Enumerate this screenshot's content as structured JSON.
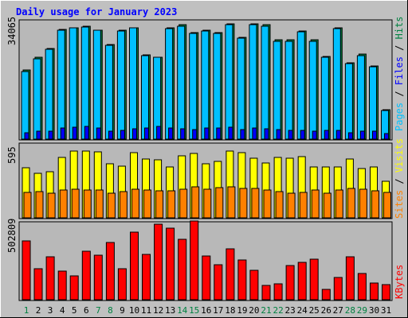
{
  "chart_data": [
    {
      "type": "bar",
      "title": "Daily usage for January 2023",
      "categories": [
        "1",
        "2",
        "3",
        "4",
        "5",
        "6",
        "7",
        "8",
        "9",
        "10",
        "11",
        "12",
        "13",
        "14",
        "15",
        "16",
        "17",
        "18",
        "19",
        "20",
        "21",
        "22",
        "23",
        "24",
        "25",
        "26",
        "27",
        "28",
        "29",
        "30",
        "31"
      ],
      "weekend_days": [
        "1",
        "7",
        "8",
        "14",
        "15",
        "21",
        "22",
        "28",
        "29"
      ],
      "max_label": "34065",
      "ylim": [
        0,
        34065
      ],
      "legend": [
        "Pages",
        "Files",
        "Hits"
      ],
      "series": [
        {
          "name": "Hits",
          "color": "#008040",
          "values": [
            19700,
            23400,
            25900,
            31400,
            31900,
            32300,
            31200,
            27000,
            31200,
            31900,
            24100,
            23500,
            31800,
            32600,
            30500,
            31000,
            30500,
            33000,
            29000,
            32900,
            32600,
            28300,
            28300,
            30900,
            28300,
            23700,
            31800,
            21800,
            24200,
            20800,
            8400
          ]
        },
        {
          "name": "Files",
          "color": "#00c0ff",
          "values": [
            19400,
            23000,
            25600,
            31200,
            31700,
            32000,
            31000,
            26800,
            30900,
            31700,
            23900,
            23300,
            31600,
            32300,
            30300,
            30800,
            30300,
            32800,
            28800,
            32700,
            32300,
            28000,
            28000,
            30600,
            28000,
            23400,
            31600,
            21600,
            23900,
            20600,
            8200
          ]
        },
        {
          "name": "Pages",
          "color": "#0000ff",
          "values": [
            1900,
            2300,
            2300,
            3200,
            3400,
            3600,
            3100,
            2200,
            2500,
            2900,
            3100,
            3600,
            3100,
            2900,
            2800,
            3100,
            3100,
            3400,
            2800,
            3100,
            2900,
            2700,
            2400,
            2500,
            2200,
            2400,
            2500,
            1900,
            2200,
            2200,
            1500
          ]
        }
      ]
    },
    {
      "type": "bar",
      "max_label": "595",
      "ylim": [
        0,
        595
      ],
      "legend": [
        "Sites",
        "Visits"
      ],
      "series": [
        {
          "name": "Visits",
          "color": "#ffff00",
          "values": [
            396,
            357,
            364,
            483,
            532,
            530,
            525,
            430,
            412,
            518,
            470,
            465,
            402,
            492,
            511,
            432,
            448,
            532,
            517,
            476,
            438,
            480,
            473,
            486,
            403,
            404,
            407,
            469,
            395,
            404,
            289
          ]
        },
        {
          "name": "Sites",
          "color": "#ff8000",
          "values": [
            202,
            207,
            198,
            221,
            228,
            222,
            219,
            197,
            208,
            231,
            221,
            217,
            216,
            228,
            244,
            231,
            242,
            250,
            236,
            233,
            222,
            206,
            197,
            201,
            220,
            196,
            222,
            233,
            226,
            218,
            202
          ]
        }
      ]
    },
    {
      "type": "bar",
      "max_label": "502809",
      "ylim": [
        0,
        502809
      ],
      "legend": [
        "KBytes"
      ],
      "series": [
        {
          "name": "KBytes",
          "color": "#ff0000",
          "values": [
            382000,
            201000,
            276000,
            187000,
            155000,
            313000,
            288000,
            369000,
            200000,
            436000,
            291000,
            488000,
            460000,
            389000,
            507000,
            282000,
            226000,
            327000,
            259000,
            192000,
            90000,
            102000,
            223000,
            242000,
            260000,
            67000,
            144000,
            275000,
            171000,
            106000,
            99000
          ]
        }
      ]
    }
  ]
}
